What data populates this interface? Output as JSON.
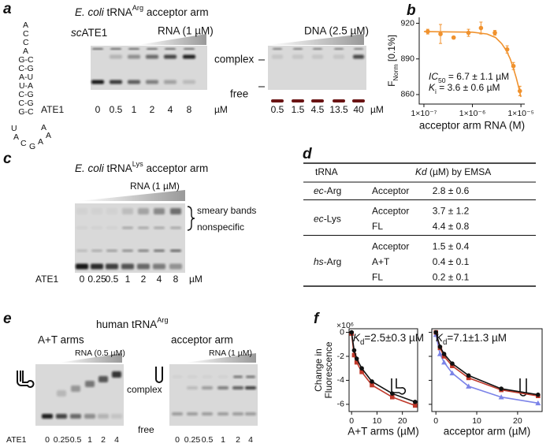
{
  "panel_a": {
    "letter": "a",
    "title": [
      "E. coli",
      " tRNA",
      "Arg",
      " acceptor arm"
    ],
    "structure": [
      "A",
      "C",
      "C",
      "A",
      "G-C",
      "C-G",
      "A-U",
      "U-A",
      "C-G",
      "C-G",
      "G-C"
    ],
    "loop": [
      "U",
      "A",
      "A",
      "C",
      "G",
      "A",
      "A"
    ],
    "enzyme": [
      "sc",
      "ATE1"
    ],
    "rna_label": "RNA (1 µM)",
    "dna_label": "DNA (2.5 µM)",
    "complex": "complex",
    "free": "free",
    "lane_title": "ATE1",
    "rna_lanes": [
      "0",
      "0.5",
      "1",
      "2",
      "4",
      "8"
    ],
    "dna_lanes": [
      "0.5",
      "1.5",
      "4.5",
      "13.5",
      "40"
    ],
    "unit": "µM"
  },
  "panel_c": {
    "letter": "c",
    "title": [
      "E. coli",
      " tRNA",
      "Lys",
      " acceptor arm"
    ],
    "rna_label": "RNA (1 µM)",
    "smeary": "smeary bands",
    "nonspecific": "nonspecific",
    "lane_title": "ATE1",
    "lanes": [
      "0",
      "0.25",
      "0.5",
      "1",
      "2",
      "4",
      "8"
    ],
    "unit": "µM"
  },
  "panel_d": {
    "letter": "d",
    "header": [
      "tRNA",
      "Kd",
      " (µM) by EMSA"
    ],
    "groups": [
      {
        "trna": [
          "ec",
          "-Arg"
        ],
        "rows": [
          [
            "Acceptor",
            "2.8 ± 0.6"
          ]
        ]
      },
      {
        "trna": [
          "ec",
          "-Lys"
        ],
        "rows": [
          [
            "Acceptor",
            "3.7 ± 1.2"
          ],
          [
            "FL",
            "4.4 ± 0.8"
          ]
        ]
      },
      {
        "trna": [
          "hs",
          "-Arg"
        ],
        "rows": [
          [
            "Acceptor",
            "1.5 ± 0.4"
          ],
          [
            "A+T",
            "0.4 ± 0.1"
          ],
          [
            "FL",
            "0.2 ± 0.1"
          ]
        ]
      }
    ]
  },
  "panel_e": {
    "letter": "e",
    "title": [
      "human tRNA",
      "Arg"
    ],
    "left": {
      "title": "A+T arms",
      "rna_label": "RNA (0.5 µM)"
    },
    "right": {
      "title": "acceptor arm",
      "rna_label": "RNA (1 µM)"
    },
    "complex": "complex",
    "free": "free",
    "lane_title": "ATE1",
    "lanes": [
      "0",
      "0.25",
      "0.5",
      "1",
      "2",
      "4"
    ]
  },
  "chart_data": [
    {
      "type": "scatter",
      "panel": "b",
      "xscale": "log",
      "xlim": [
        8e-08,
        1.2e-05
      ],
      "ylim": [
        852,
        925
      ],
      "xticks": [
        {
          "value": 1e-07,
          "label": "1×10⁻⁷"
        },
        {
          "value": 1e-06,
          "label": "1×10⁻⁶"
        },
        {
          "value": 1e-05,
          "label": "1×10⁻⁵"
        }
      ],
      "yticks": [
        860,
        890,
        920
      ],
      "ylabel": [
        "F",
        "Norm",
        " [0.1%]"
      ],
      "xlabel": "acceptor arm RNA (M)",
      "annotations": [
        [
          "IC",
          "50",
          " = 6.7 ± 1.1 µM"
        ],
        [
          "K",
          "i",
          " = 3.6 ± 0.6 µM"
        ]
      ],
      "series": [
        {
          "color": "#f0922e",
          "marker": "circle",
          "x": [
            1.2e-07,
            2.2e-07,
            4.1e-07,
            8.3e-07,
            1.5e-06,
            2.9e-06,
            5.2e-06,
            7e-06,
            9.5e-06
          ],
          "values": [
            913,
            911,
            908,
            912,
            916,
            912,
            898,
            884,
            863
          ],
          "errors": [
            2,
            8,
            1,
            3,
            5,
            2,
            3,
            3,
            4
          ]
        },
        {
          "color": "#f0922e",
          "line": true,
          "x": [
            1e-07,
            1e-06,
            2e-06,
            3e-06,
            4e-06,
            5e-06,
            6e-06,
            7e-06,
            8e-06,
            9e-06,
            1e-05
          ],
          "values": [
            913,
            912.5,
            911,
            908,
            903,
            897,
            890,
            882,
            874,
            866,
            858
          ]
        }
      ]
    },
    {
      "type": "line",
      "panel": "f",
      "xlim": [
        -1,
        26
      ],
      "ylim": [
        -6.6,
        0.3
      ],
      "xticks": [
        0,
        10,
        20
      ],
      "yticks": [
        0,
        -2,
        -4,
        -6
      ],
      "show_ytick_labels": true,
      "yfactor": "×10⁶",
      "ylabel": [
        "Change in",
        "Fluorescence"
      ],
      "xlabel": "A+T arms (µM)",
      "annotation": [
        "K",
        "d",
        "=2.5±0.3 µM"
      ],
      "series": [
        {
          "color": "#c0392b",
          "marker": "square",
          "line": true,
          "x": [
            0,
            1,
            2,
            4,
            8,
            16,
            25
          ],
          "values": [
            -0.1,
            -1.9,
            -2.5,
            -3.3,
            -4.4,
            -5.4,
            -6.1
          ]
        },
        {
          "color": "#111111",
          "marker": "circle",
          "line": true,
          "x": [
            0,
            1,
            2,
            4,
            8,
            16,
            25
          ],
          "values": [
            0,
            -1.5,
            -2.2,
            -3,
            -4.1,
            -5.1,
            -5.8
          ]
        }
      ]
    },
    {
      "type": "line",
      "xlim": [
        -1,
        26
      ],
      "ylim": [
        -6.6,
        0.3
      ],
      "xticks": [
        0,
        10,
        20
      ],
      "yticks": [
        0,
        -2,
        -4,
        -6
      ],
      "show_ytick_labels": false,
      "xlabel": "acceptor arm (µM)",
      "annotation": [
        "K",
        "d",
        "=7.1±1.3 µM"
      ],
      "series": [
        {
          "color": "#7b83e8",
          "marker": "triangle",
          "line": true,
          "x": [
            0,
            1,
            2,
            4,
            8,
            16,
            25
          ],
          "values": [
            -0.2,
            -1.8,
            -2.5,
            -3.4,
            -4.5,
            -5.4,
            -5.9
          ]
        },
        {
          "color": "#c0392b",
          "marker": "square",
          "line": true,
          "x": [
            0,
            1,
            2,
            4,
            8,
            16,
            25
          ],
          "values": [
            0,
            -1.3,
            -2,
            -2.8,
            -3.8,
            -4.8,
            -5.3
          ]
        },
        {
          "color": "#111111",
          "marker": "circle",
          "line": true,
          "x": [
            0,
            1,
            2,
            4,
            8,
            16,
            25
          ],
          "values": [
            0,
            -1.2,
            -1.8,
            -2.6,
            -3.6,
            -4.7,
            -5.2
          ]
        }
      ]
    }
  ]
}
